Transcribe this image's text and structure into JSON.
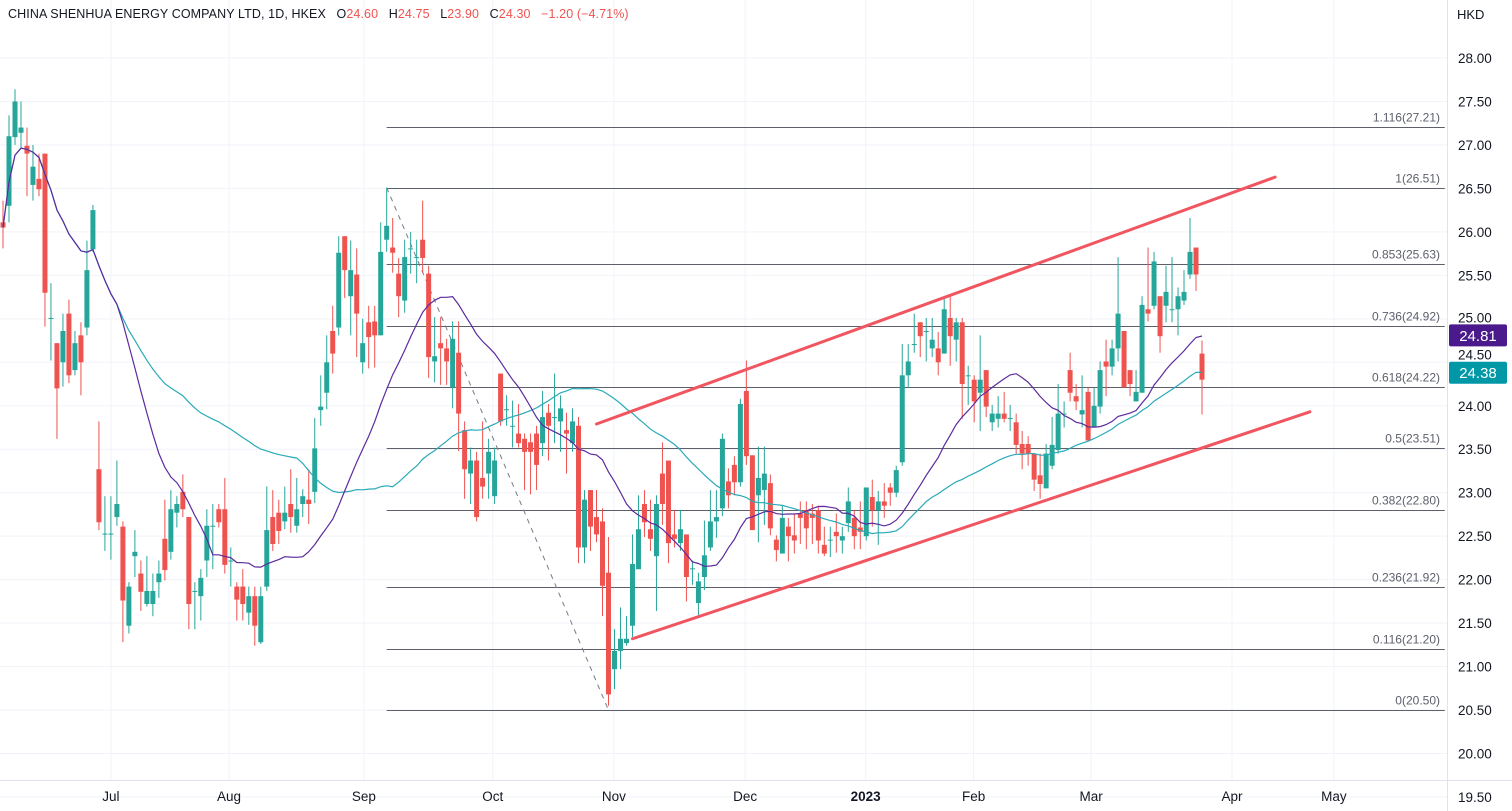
{
  "header": {
    "symbol": "CHINA SHENHUA ENERGY COMPANY LTD, 1D, HKEX",
    "open_label": "O",
    "open": "24.60",
    "high_label": "H",
    "high": "24.75",
    "low_label": "L",
    "low": "23.90",
    "close_label": "C",
    "close": "24.30",
    "change": "−1.20 (−4.71%)"
  },
  "currency": "HKD",
  "colors": {
    "up": "#26a69a",
    "down": "#ef5350",
    "ma_fast": "#5b2a9e",
    "ma_slow": "#28aab8",
    "fib": "#5d606b",
    "trend": "#f05560",
    "grid": "#f0f3fa"
  },
  "chart_data": {
    "type": "candlestick",
    "title": "CHINA SHENHUA ENERGY COMPANY LTD, 1D, HKEX",
    "ylabel": "HKD",
    "ylim": [
      19.5,
      28.0
    ],
    "y_ticks": [
      "19.50",
      "20.00",
      "20.50",
      "21.00",
      "21.50",
      "22.00",
      "22.50",
      "23.00",
      "23.50",
      "24.00",
      "24.50",
      "25.00",
      "25.50",
      "26.00",
      "26.50",
      "27.00",
      "27.50",
      "28.00"
    ],
    "x_ticks": [
      {
        "label": "Jul",
        "bar": 18,
        "bold": false
      },
      {
        "label": "Aug",
        "bar": 37.7,
        "bold": false
      },
      {
        "label": "Sep",
        "bar": 60.2,
        "bold": false
      },
      {
        "label": "Oct",
        "bar": 81.7,
        "bold": false
      },
      {
        "label": "Nov",
        "bar": 101.9,
        "bold": false
      },
      {
        "label": "Dec",
        "bar": 123.8,
        "bold": false
      },
      {
        "label": "2023",
        "bar": 143.9,
        "bold": true
      },
      {
        "label": "Feb",
        "bar": 161.9,
        "bold": false
      },
      {
        "label": "Mar",
        "bar": 181.5,
        "bold": false
      },
      {
        "label": "Apr",
        "bar": 205,
        "bold": false
      },
      {
        "label": "May",
        "bar": 222,
        "bold": false
      }
    ],
    "candles_ohlc": [
      [
        26.11,
        26.36,
        25.81,
        26.05
      ],
      [
        26.3,
        27.34,
        26.11,
        27.1
      ],
      [
        27.09,
        27.64,
        27.0,
        27.5
      ],
      [
        27.14,
        27.5,
        26.96,
        27.2
      ],
      [
        26.99,
        27.2,
        26.41,
        26.9
      ],
      [
        26.54,
        27.0,
        26.36,
        26.75
      ],
      [
        26.61,
        26.9,
        26.41,
        26.49
      ],
      [
        26.9,
        26.9,
        24.91,
        25.3
      ],
      [
        25.01,
        25.41,
        24.52,
        25.01
      ],
      [
        24.72,
        24.72,
        23.62,
        24.2
      ],
      [
        24.5,
        25.06,
        24.22,
        24.86
      ],
      [
        25.06,
        25.22,
        24.26,
        24.35
      ],
      [
        24.41,
        24.86,
        24.35,
        24.72
      ],
      [
        24.81,
        24.96,
        24.12,
        24.5
      ],
      [
        24.9,
        25.9,
        24.81,
        25.56
      ],
      [
        25.8,
        26.31,
        25.77,
        26.25
      ],
      [
        23.27,
        23.82,
        22.57,
        22.66
      ],
      [
        22.53,
        22.96,
        22.33,
        22.53
      ],
      [
        22.53,
        22.96,
        22.23,
        22.53
      ],
      [
        22.72,
        23.37,
        22.62,
        22.87
      ],
      [
        22.61,
        22.67,
        21.28,
        21.76
      ],
      [
        21.47,
        21.97,
        21.38,
        21.92
      ],
      [
        22.27,
        22.57,
        22.03,
        22.32
      ],
      [
        22.07,
        22.22,
        21.64,
        21.86
      ],
      [
        21.72,
        22.27,
        21.69,
        21.87
      ],
      [
        21.72,
        22.07,
        21.58,
        21.87
      ],
      [
        21.97,
        22.22,
        21.79,
        22.07
      ],
      [
        22.47,
        22.92,
        21.99,
        22.11
      ],
      [
        22.32,
        23.03,
        22.23,
        22.81
      ],
      [
        22.77,
        22.96,
        22.6,
        22.87
      ],
      [
        23.01,
        23.21,
        22.72,
        22.81
      ],
      [
        22.72,
        22.72,
        21.43,
        21.72
      ],
      [
        21.87,
        21.97,
        21.43,
        21.87
      ],
      [
        21.81,
        22.12,
        21.53,
        22.02
      ],
      [
        22.22,
        22.81,
        22.03,
        22.62
      ],
      [
        22.62,
        22.87,
        22.12,
        22.62
      ],
      [
        22.81,
        22.87,
        22.6,
        22.66
      ],
      [
        22.81,
        23.17,
        22.07,
        22.17
      ],
      [
        22.22,
        22.37,
        21.92,
        22.22
      ],
      [
        21.92,
        21.97,
        21.53,
        21.77
      ],
      [
        21.92,
        22.12,
        21.53,
        21.72
      ],
      [
        21.62,
        21.92,
        21.48,
        21.81
      ],
      [
        21.81,
        21.92,
        21.24,
        21.47
      ],
      [
        21.28,
        21.92,
        21.26,
        21.81
      ],
      [
        21.92,
        23.07,
        21.87,
        22.57
      ],
      [
        22.72,
        23.03,
        22.33,
        22.41
      ],
      [
        22.77,
        22.92,
        22.41,
        22.56
      ],
      [
        22.67,
        23.07,
        22.58,
        22.77
      ],
      [
        22.87,
        23.27,
        22.54,
        22.72
      ],
      [
        22.62,
        23.17,
        22.54,
        22.81
      ],
      [
        22.87,
        23.04,
        22.72,
        22.96
      ],
      [
        22.92,
        23.27,
        22.64,
        22.87
      ],
      [
        23.01,
        23.86,
        22.88,
        23.51
      ],
      [
        23.95,
        24.35,
        23.77,
        23.99
      ],
      [
        24.15,
        24.81,
        23.96,
        24.5
      ],
      [
        24.86,
        25.15,
        24.37,
        24.6
      ],
      [
        24.9,
        25.95,
        24.81,
        25.76
      ],
      [
        25.95,
        25.95,
        25.24,
        25.56
      ],
      [
        25.26,
        25.9,
        24.81,
        25.56
      ],
      [
        25.51,
        25.81,
        24.56,
        25.06
      ],
      [
        24.5,
        25.0,
        24.37,
        24.72
      ],
      [
        24.96,
        25.15,
        24.43,
        24.79
      ],
      [
        24.97,
        25.15,
        24.44,
        24.81
      ],
      [
        24.81,
        26.11,
        24.81,
        25.77
      ],
      [
        25.91,
        26.51,
        25.77,
        26.07
      ],
      [
        25.82,
        26.16,
        25.53,
        25.76
      ],
      [
        25.52,
        25.7,
        25.02,
        25.26
      ],
      [
        25.21,
        25.91,
        25.07,
        25.71
      ],
      [
        25.81,
        26.0,
        25.52,
        25.81
      ],
      [
        25.71,
        25.91,
        25.41,
        25.71
      ],
      [
        25.91,
        26.36,
        25.53,
        25.7
      ],
      [
        25.52,
        25.61,
        24.32,
        24.56
      ],
      [
        24.51,
        25.02,
        24.27,
        24.57
      ],
      [
        24.72,
        25.02,
        24.24,
        24.66
      ],
      [
        24.66,
        24.77,
        24.24,
        24.51
      ],
      [
        24.21,
        24.97,
        23.97,
        24.77
      ],
      [
        24.61,
        24.97,
        23.48,
        23.91
      ],
      [
        23.72,
        23.82,
        22.93,
        23.27
      ],
      [
        23.22,
        23.52,
        22.87,
        23.37
      ],
      [
        23.37,
        23.47,
        22.67,
        22.72
      ],
      [
        23.17,
        23.82,
        22.93,
        23.07
      ],
      [
        23.22,
        23.62,
        22.93,
        23.47
      ],
      [
        22.96,
        23.52,
        22.87,
        23.37
      ],
      [
        24.37,
        24.37,
        23.77,
        23.82
      ],
      [
        23.96,
        24.12,
        23.77,
        23.96
      ],
      [
        23.77,
        24.06,
        23.52,
        23.77
      ],
      [
        23.68,
        24.02,
        23.52,
        23.57
      ],
      [
        23.62,
        23.68,
        23.03,
        23.47
      ],
      [
        23.58,
        23.68,
        22.98,
        23.47
      ],
      [
        23.68,
        23.77,
        23.03,
        23.32
      ],
      [
        23.57,
        24.17,
        23.42,
        23.87
      ],
      [
        23.92,
        24.02,
        23.37,
        23.77
      ],
      [
        23.87,
        24.37,
        23.57,
        23.87
      ],
      [
        23.82,
        24.12,
        23.47,
        23.97
      ],
      [
        23.72,
        23.92,
        23.22,
        23.68
      ],
      [
        23.57,
        23.97,
        23.47,
        23.82
      ],
      [
        23.77,
        23.87,
        22.19,
        22.37
      ],
      [
        22.37,
        23.03,
        22.19,
        22.92
      ],
      [
        23.03,
        23.03,
        22.33,
        22.61
      ],
      [
        22.72,
        23.03,
        22.43,
        22.52
      ],
      [
        22.67,
        22.82,
        21.58,
        21.93
      ],
      [
        22.08,
        22.49,
        20.55,
        20.68
      ],
      [
        20.97,
        21.43,
        20.74,
        21.18
      ],
      [
        21.18,
        21.68,
        20.97,
        21.32
      ],
      [
        21.27,
        21.58,
        21.24,
        21.32
      ],
      [
        21.47,
        22.52,
        21.34,
        22.18
      ],
      [
        22.12,
        22.97,
        22.12,
        22.58
      ],
      [
        22.87,
        23.03,
        22.49,
        22.66
      ],
      [
        22.58,
        22.92,
        22.33,
        22.47
      ],
      [
        22.27,
        22.97,
        21.64,
        22.87
      ],
      [
        23.22,
        23.58,
        22.63,
        22.87
      ],
      [
        23.37,
        23.37,
        22.19,
        22.42
      ],
      [
        22.52,
        22.8,
        22.37,
        22.47
      ],
      [
        22.42,
        22.8,
        22.33,
        22.58
      ],
      [
        22.52,
        22.52,
        21.75,
        22.03
      ],
      [
        22.13,
        22.22,
        21.94,
        22.13
      ],
      [
        21.73,
        22.08,
        21.58,
        21.98
      ],
      [
        22.03,
        22.68,
        21.88,
        22.28
      ],
      [
        22.37,
        23.03,
        22.33,
        22.67
      ],
      [
        22.67,
        23.03,
        22.48,
        22.72
      ],
      [
        22.82,
        23.68,
        22.73,
        23.62
      ],
      [
        23.13,
        23.28,
        22.82,
        22.97
      ],
      [
        23.32,
        23.42,
        22.97,
        23.12
      ],
      [
        23.12,
        24.08,
        23.07,
        24.02
      ],
      [
        24.17,
        24.52,
        23.32,
        23.42
      ],
      [
        23.43,
        23.43,
        22.57,
        22.57
      ],
      [
        22.97,
        23.53,
        22.43,
        23.17
      ],
      [
        23.03,
        23.53,
        22.63,
        23.22
      ],
      [
        23.11,
        23.21,
        22.51,
        22.59
      ],
      [
        22.46,
        22.51,
        22.21,
        22.34
      ],
      [
        22.3,
        22.85,
        22.3,
        22.71
      ],
      [
        22.61,
        22.71,
        22.21,
        22.5
      ],
      [
        22.51,
        22.75,
        22.3,
        22.45
      ],
      [
        22.76,
        22.9,
        22.41,
        22.71
      ],
      [
        22.8,
        22.9,
        22.35,
        22.59
      ],
      [
        22.76,
        22.87,
        22.41,
        22.71
      ],
      [
        22.8,
        22.85,
        22.3,
        22.45
      ],
      [
        22.4,
        22.61,
        22.27,
        22.3
      ],
      [
        22.46,
        22.61,
        22.26,
        22.46
      ],
      [
        22.55,
        22.76,
        22.31,
        22.5
      ],
      [
        22.45,
        22.61,
        22.3,
        22.5
      ],
      [
        22.65,
        23.06,
        22.55,
        22.9
      ],
      [
        22.71,
        22.8,
        22.35,
        22.5
      ],
      [
        22.6,
        22.9,
        22.35,
        22.55
      ],
      [
        22.5,
        23.06,
        22.45,
        23.06
      ],
      [
        22.95,
        23.15,
        22.61,
        22.8
      ],
      [
        22.8,
        23.02,
        22.4,
        22.9
      ],
      [
        22.9,
        23.11,
        22.71,
        22.85
      ],
      [
        23.06,
        23.11,
        22.85,
        23.0
      ],
      [
        23.0,
        23.31,
        22.95,
        23.26
      ],
      [
        23.35,
        24.71,
        23.31,
        24.35
      ],
      [
        24.35,
        24.71,
        24.21,
        24.51
      ],
      [
        24.71,
        25.06,
        24.61,
        24.71
      ],
      [
        24.96,
        24.96,
        24.56,
        24.8
      ],
      [
        24.86,
        25.01,
        24.51,
        24.86
      ],
      [
        24.66,
        25.01,
        24.56,
        24.76
      ],
      [
        24.66,
        24.85,
        24.35,
        24.5
      ],
      [
        24.6,
        25.26,
        24.6,
        25.11
      ],
      [
        25.01,
        25.26,
        24.46,
        24.8
      ],
      [
        24.76,
        25.01,
        24.51,
        24.96
      ],
      [
        24.96,
        25.01,
        23.85,
        24.25
      ],
      [
        24.35,
        24.46,
        24.01,
        24.35
      ],
      [
        24.3,
        24.35,
        23.81,
        24.05
      ],
      [
        24.15,
        24.81,
        23.71,
        24.3
      ],
      [
        24.41,
        24.41,
        23.87,
        23.99
      ],
      [
        23.81,
        24.01,
        23.71,
        23.91
      ],
      [
        23.85,
        24.11,
        23.75,
        23.91
      ],
      [
        23.91,
        24.16,
        23.81,
        23.85
      ],
      [
        23.86,
        24.01,
        23.71,
        23.86
      ],
      [
        23.81,
        23.91,
        23.45,
        23.55
      ],
      [
        23.56,
        23.71,
        23.27,
        23.45
      ],
      [
        23.56,
        23.65,
        23.31,
        23.45
      ],
      [
        23.45,
        23.45,
        23.02,
        23.15
      ],
      [
        23.2,
        23.45,
        22.93,
        23.1
      ],
      [
        23.05,
        23.56,
        23.05,
        23.45
      ],
      [
        23.31,
        23.87,
        23.27,
        23.55
      ],
      [
        23.49,
        24.25,
        23.45,
        23.91
      ],
      [
        23.91,
        24.05,
        23.75,
        23.91
      ],
      [
        24.41,
        24.61,
        24.05,
        24.15
      ],
      [
        24.11,
        24.25,
        23.95,
        24.05
      ],
      [
        23.9,
        24.35,
        23.75,
        23.95
      ],
      [
        24.16,
        24.21,
        23.6,
        23.6
      ],
      [
        23.75,
        24.21,
        23.75,
        24.0
      ],
      [
        23.99,
        24.51,
        23.91,
        24.41
      ],
      [
        24.51,
        24.76,
        24.11,
        24.45
      ],
      [
        24.45,
        24.76,
        24.35,
        24.66
      ],
      [
        24.66,
        25.71,
        24.51,
        25.06
      ],
      [
        24.86,
        24.86,
        24.21,
        24.21
      ],
      [
        24.41,
        24.41,
        24.11,
        24.25
      ],
      [
        24.05,
        24.41,
        24.05,
        24.16
      ],
      [
        24.15,
        25.26,
        24.15,
        25.16
      ],
      [
        25.11,
        25.82,
        24.97,
        25.06
      ],
      [
        25.15,
        25.77,
        25.11,
        25.66
      ],
      [
        25.26,
        25.26,
        24.61,
        24.8
      ],
      [
        25.15,
        25.61,
        24.96,
        25.31
      ],
      [
        25.11,
        25.71,
        24.96,
        25.11
      ],
      [
        25.11,
        25.36,
        24.81,
        25.26
      ],
      [
        25.21,
        25.56,
        25.16,
        25.31
      ],
      [
        25.51,
        26.16,
        25.46,
        25.77
      ],
      [
        25.82,
        25.82,
        25.32,
        25.51
      ],
      [
        24.6,
        24.75,
        23.9,
        24.3
      ]
    ],
    "moving_averages": [
      {
        "name": "MA fast",
        "period": 20,
        "last_value": "24.81"
      },
      {
        "name": "MA slow",
        "period": 50,
        "last_value": "24.38"
      }
    ],
    "fibonacci": {
      "from_bar": 64,
      "to_bar": 101,
      "extend_to_bar": 240.5,
      "levels": [
        {
          "label": "1.116(27.21)",
          "ratio": 1.116,
          "price": 27.21
        },
        {
          "label": "1(26.51)",
          "ratio": 1,
          "price": 26.51
        },
        {
          "label": "0.853(25.63)",
          "ratio": 0.853,
          "price": 25.63
        },
        {
          "label": "0.736(24.92)",
          "ratio": 0.736,
          "price": 24.92
        },
        {
          "label": "0.618(24.22)",
          "ratio": 0.618,
          "price": 24.22
        },
        {
          "label": "0.5(23.51)",
          "ratio": 0.5,
          "price": 23.51
        },
        {
          "label": "0.382(22.80)",
          "ratio": 0.382,
          "price": 22.8
        },
        {
          "label": "0.236(21.92)",
          "ratio": 0.236,
          "price": 21.92
        },
        {
          "label": "0.116(21.20)",
          "ratio": 0.116,
          "price": 21.2
        },
        {
          "label": "0(20.50)",
          "ratio": 0,
          "price": 20.5
        }
      ]
    },
    "trendlines": [
      {
        "name": "upper-channel",
        "x1": 99,
        "y1": 23.79,
        "x2": 212.2,
        "y2": 26.63
      },
      {
        "name": "lower-channel",
        "x1": 105,
        "y1": 21.32,
        "x2": 218,
        "y2": 23.93
      }
    ]
  }
}
